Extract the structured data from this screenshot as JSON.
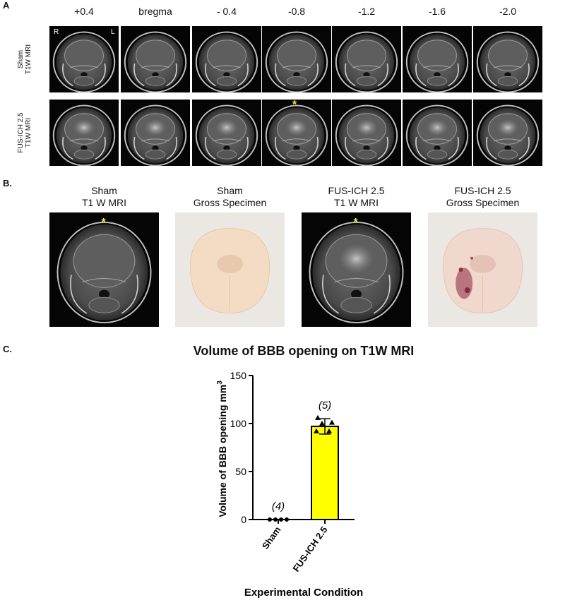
{
  "panel_a": {
    "label": "A",
    "columns": [
      "+0.4",
      "bregma",
      "- 0.4",
      "-0.8",
      "-1.2",
      "-1.6",
      "-2.0"
    ],
    "rows": [
      {
        "line1": "Sham",
        "line2": "T1W MRI"
      },
      {
        "line1": "FUS-ICH 2.5",
        "line2": "T1W MRI"
      }
    ],
    "orientation_right": "R",
    "orientation_left": "L",
    "marker": "*"
  },
  "panel_b": {
    "label": "B.",
    "items": [
      {
        "line1": "Sham",
        "line2": "T1 W MRI"
      },
      {
        "line1": "Sham",
        "line2": "Gross Specimen"
      },
      {
        "line1": "FUS-ICH 2.5",
        "line2": "T1 W MRI"
      },
      {
        "line1": "FUS-ICH 2.5",
        "line2": "Gross Specimen"
      }
    ],
    "marker": "*"
  },
  "panel_c": {
    "label": "C.",
    "n_labels": [
      "(4)",
      "(5)"
    ]
  },
  "chart_data": {
    "type": "bar",
    "title": "Volume of BBB opening on T1W MRI",
    "xlabel": "Experimental Condition",
    "ylabel": "Volume of BBB opening mm",
    "ylabel_superscript": "3",
    "categories": [
      "Sham",
      "FUS-ICH 2.5"
    ],
    "values": [
      0,
      97
    ],
    "error_sd": [
      0,
      8
    ],
    "points": [
      [
        0,
        0,
        0,
        0
      ],
      [
        106,
        101,
        100,
        92,
        92
      ]
    ],
    "bar_colors": [
      "#ffffff",
      "#ffff00"
    ],
    "ylim": [
      0,
      150
    ],
    "yticks": [
      0,
      50,
      100,
      150
    ]
  }
}
